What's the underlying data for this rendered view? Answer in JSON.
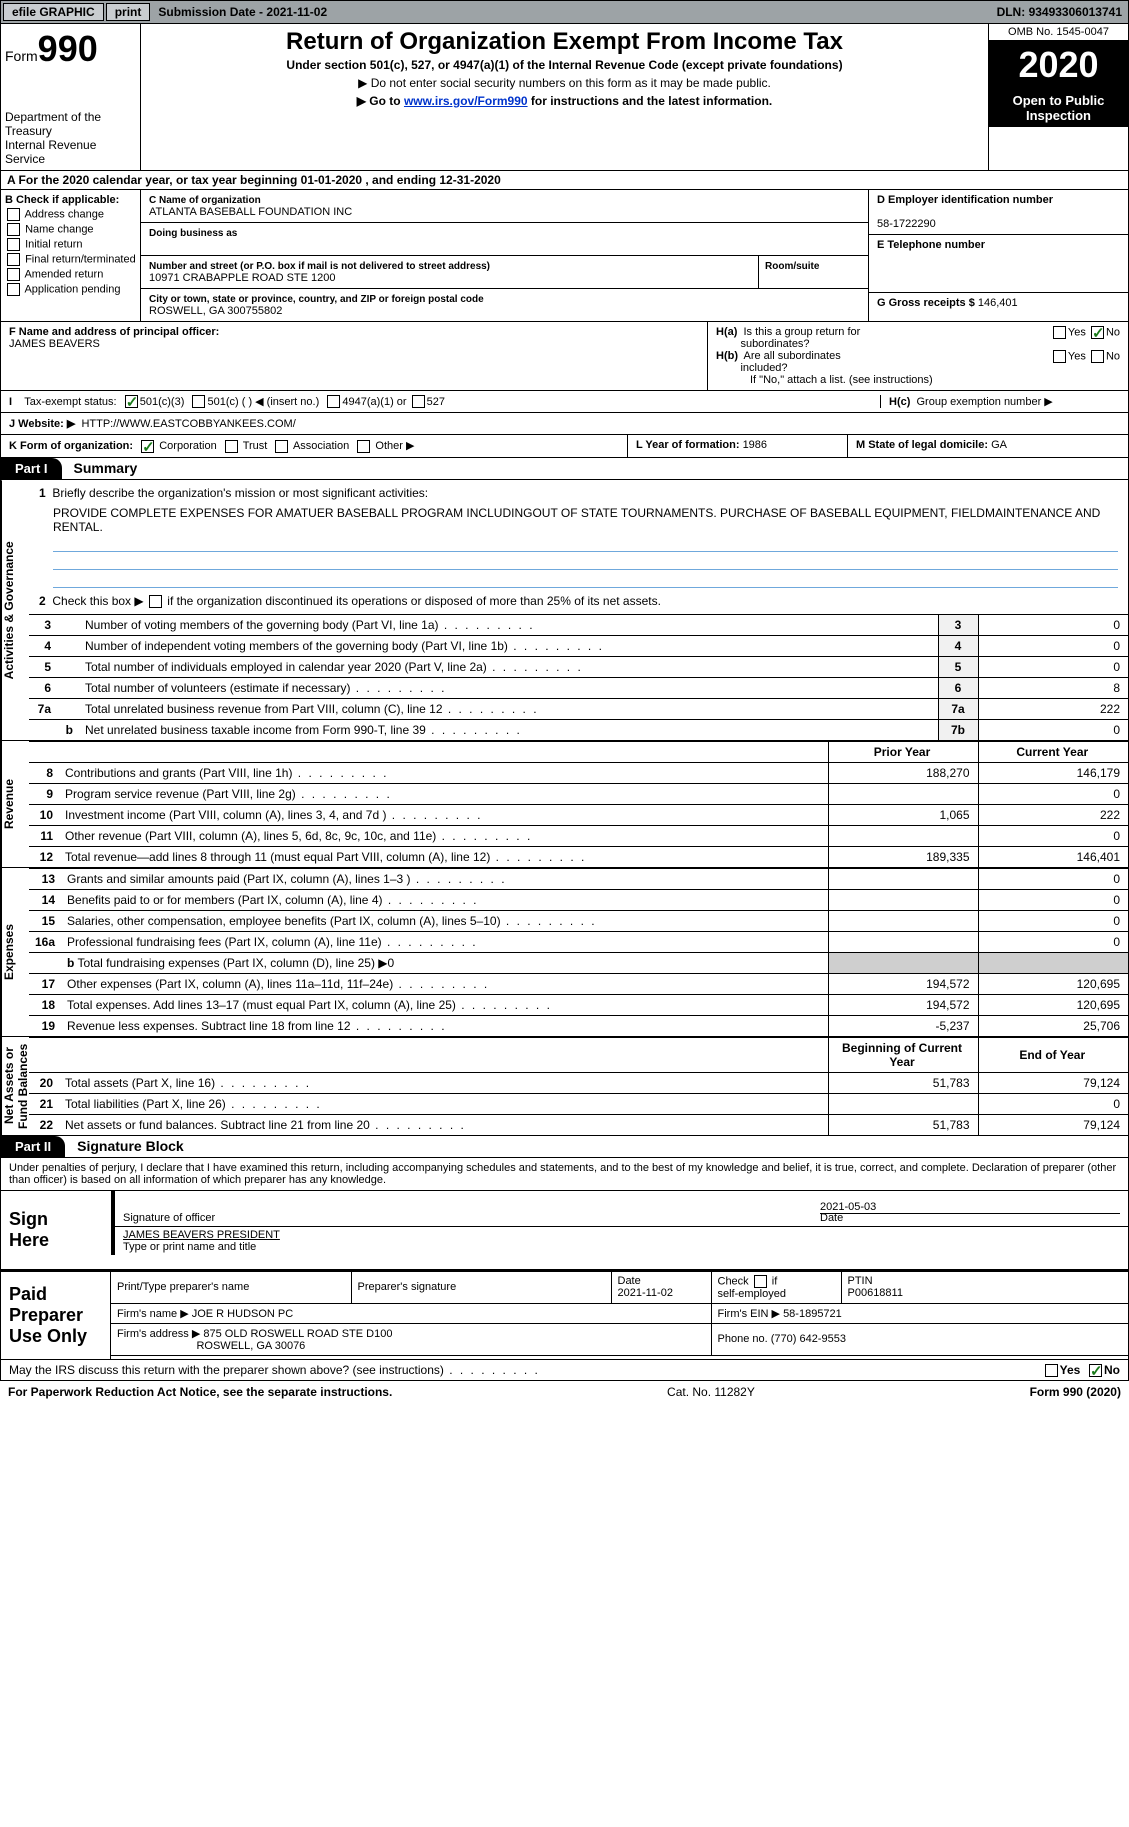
{
  "topbar": {
    "efile": "efile GRAPHIC",
    "print": "print",
    "sub_label": "Submission Date - ",
    "sub_date": "2021-11-02",
    "dln_label": "DLN: ",
    "dln": "93493306013741"
  },
  "header": {
    "form_prefix": "Form",
    "form_num": "990",
    "dept": "Department of the Treasury\nInternal Revenue Service",
    "title": "Return of Organization Exempt From Income Tax",
    "subtitle": "Under section 501(c), 527, or 4947(a)(1) of the Internal Revenue Code (except private foundations)",
    "note1": "▶ Do not enter social security numbers on this form as it may be made public.",
    "note2_prefix": "▶ Go to ",
    "note2_link": "www.irs.gov/Form990",
    "note2_suffix": " for instructions and the latest information.",
    "omb": "OMB No. 1545-0047",
    "year": "2020",
    "open": "Open to Public Inspection"
  },
  "calrow": "A For the 2020 calendar year, or tax year beginning 01-01-2020   , and ending 12-31-2020",
  "boxB": {
    "label": "B Check if applicable:",
    "items": [
      "Address change",
      "Name change",
      "Initial return",
      "Final return/terminated",
      "Amended return",
      "Application pending"
    ]
  },
  "boxC": {
    "name_label": "C Name of organization",
    "name": "ATLANTA BASEBALL FOUNDATION INC",
    "dba_label": "Doing business as",
    "street_label": "Number and street (or P.O. box if mail is not delivered to street address)",
    "room_label": "Room/suite",
    "street": "10971 CRABAPPLE ROAD STE 1200",
    "city_label": "City or town, state or province, country, and ZIP or foreign postal code",
    "city": "ROSWELL, GA  300755802"
  },
  "boxD": {
    "label": "D Employer identification number",
    "value": "58-1722290"
  },
  "boxE": {
    "label": "E Telephone number",
    "value": ""
  },
  "boxG": {
    "label": "G Gross receipts $ ",
    "value": "146,401"
  },
  "boxF": {
    "label": "F Name and address of principal officer:",
    "value": "JAMES BEAVERS"
  },
  "boxH": {
    "a_label": "H(a)  Is this a group return for subordinates?",
    "a_yes": "Yes",
    "a_no": "No",
    "b_label": "H(b)  Are all subordinates included?",
    "b_note": "If \"No,\" attach a list. (see instructions)",
    "c_label": "H(c)  Group exemption number ▶"
  },
  "boxI": {
    "label": "I    Tax-exempt status:",
    "c3": "501(c)(3)",
    "c": "501(c) (   ) ◀ (insert no.)",
    "a1": "4947(a)(1) or",
    "527": "527"
  },
  "boxJ": {
    "label": "J    Website: ▶",
    "value": "HTTP://WWW.EASTCOBBYANKEES.COM/"
  },
  "boxK": {
    "label": "K Form of organization:",
    "corp": "Corporation",
    "trust": "Trust",
    "assoc": "Association",
    "other": "Other ▶"
  },
  "boxL": {
    "label": "L Year of formation: ",
    "value": "1986"
  },
  "boxM": {
    "label": "M State of legal domicile: ",
    "value": "GA"
  },
  "part1": {
    "tab": "Part I",
    "title": "Summary"
  },
  "summary": {
    "side_ag": "Activities & Governance",
    "side_rev": "Revenue",
    "side_exp": "Expenses",
    "side_na": "Net Assets or\nFund Balances",
    "brief_label": "1   Briefly describe the organization's mission or most significant activities:",
    "mission": "PROVIDE COMPLETE EXPENSES FOR AMATUER BASEBALL PROGRAM INCLUDINGOUT OF STATE TOURNAMENTS. PURCHASE OF BASEBALL EQUIPMENT, FIELDMAINTENANCE AND RENTAL.",
    "line2": "2   Check this box ▶        if the organization discontinued its operations or disposed of more than 25% of its net assets.",
    "rows_ag": [
      {
        "n": "3",
        "desc": "Number of voting members of the governing body (Part VI, line 1a)",
        "box": "3",
        "val": "0"
      },
      {
        "n": "4",
        "desc": "Number of independent voting members of the governing body (Part VI, line 1b)",
        "box": "4",
        "val": "0"
      },
      {
        "n": "5",
        "desc": "Total number of individuals employed in calendar year 2020 (Part V, line 2a)",
        "box": "5",
        "val": "0"
      },
      {
        "n": "6",
        "desc": "Total number of volunteers (estimate if necessary)",
        "box": "6",
        "val": "8"
      },
      {
        "n": "7a",
        "desc": "Total unrelated business revenue from Part VIII, column (C), line 12",
        "box": "7a",
        "val": "222"
      },
      {
        "n": "",
        "desc": "Net unrelated business taxable income from Form 990-T, line 39",
        "box": "7b",
        "val": "0",
        "sub": "b"
      }
    ],
    "hdr_prior": "Prior Year",
    "hdr_curr": "Current Year",
    "rows_rev": [
      {
        "n": "8",
        "desc": "Contributions and grants (Part VIII, line 1h)",
        "py": "188,270",
        "cy": "146,179"
      },
      {
        "n": "9",
        "desc": "Program service revenue (Part VIII, line 2g)",
        "py": "",
        "cy": "0"
      },
      {
        "n": "10",
        "desc": "Investment income (Part VIII, column (A), lines 3, 4, and 7d )",
        "py": "1,065",
        "cy": "222"
      },
      {
        "n": "11",
        "desc": "Other revenue (Part VIII, column (A), lines 5, 6d, 8c, 9c, 10c, and 11e)",
        "py": "",
        "cy": "0"
      },
      {
        "n": "12",
        "desc": "Total revenue—add lines 8 through 11 (must equal Part VIII, column (A), line 12)",
        "py": "189,335",
        "cy": "146,401"
      }
    ],
    "rows_exp": [
      {
        "n": "13",
        "desc": "Grants and similar amounts paid (Part IX, column (A), lines 1–3 )",
        "py": "",
        "cy": "0"
      },
      {
        "n": "14",
        "desc": "Benefits paid to or for members (Part IX, column (A), line 4)",
        "py": "",
        "cy": "0"
      },
      {
        "n": "15",
        "desc": "Salaries, other compensation, employee benefits (Part IX, column (A), lines 5–10)",
        "py": "",
        "cy": "0"
      },
      {
        "n": "16a",
        "desc": "Professional fundraising fees (Part IX, column (A), line 11e)",
        "py": "",
        "cy": "0"
      },
      {
        "n": "",
        "sub": "b",
        "desc": "Total fundraising expenses (Part IX, column (D), line 25) ▶0",
        "shade": true
      },
      {
        "n": "17",
        "desc": "Other expenses (Part IX, column (A), lines 11a–11d, 11f–24e)",
        "py": "194,572",
        "cy": "120,695"
      },
      {
        "n": "18",
        "desc": "Total expenses. Add lines 13–17 (must equal Part IX, column (A), line 25)",
        "py": "194,572",
        "cy": "120,695"
      },
      {
        "n": "19",
        "desc": "Revenue less expenses. Subtract line 18 from line 12",
        "py": "-5,237",
        "cy": "25,706"
      }
    ],
    "hdr_beg": "Beginning of Current Year",
    "hdr_end": "End of Year",
    "rows_na": [
      {
        "n": "20",
        "desc": "Total assets (Part X, line 16)",
        "py": "51,783",
        "cy": "79,124"
      },
      {
        "n": "21",
        "desc": "Total liabilities (Part X, line 26)",
        "py": "",
        "cy": "0"
      },
      {
        "n": "22",
        "desc": "Net assets or fund balances. Subtract line 21 from line 20",
        "py": "51,783",
        "cy": "79,124"
      }
    ]
  },
  "part2": {
    "tab": "Part II",
    "title": "Signature Block"
  },
  "sig": {
    "decl": "Under penalties of perjury, I declare that I have examined this return, including accompanying schedules and statements, and to the best of my knowledge and belief, it is true, correct, and complete. Declaration of preparer (other than officer) is based on all information of which preparer has any knowledge.",
    "sign_here": "Sign Here",
    "sig_label": "Signature of officer",
    "date_label": "Date",
    "date_val": "2021-05-03",
    "name_label": "Type or print name and title",
    "name_val": "JAMES BEAVERS  PRESIDENT"
  },
  "paid": {
    "label": "Paid Preparer Use Only",
    "r1": {
      "c1": "Print/Type preparer's name",
      "c2": "Preparer's signature",
      "c3_l": "Date",
      "c3_v": "2021-11-02",
      "c4": "Check        if self-employed",
      "c5_l": "PTIN",
      "c5_v": "P00618811"
    },
    "r2": {
      "l": "Firm's name    ▶ ",
      "v": "JOE R HUDSON PC",
      "r_l": "Firm's EIN ▶ ",
      "r_v": "58-1895721"
    },
    "r3": {
      "l": "Firm's address ▶ ",
      "v1": "875 OLD ROSWELL ROAD STE D100",
      "v2": "ROSWELL, GA  30076",
      "r_l": "Phone no. ",
      "r_v": "(770) 642-9553"
    }
  },
  "discuss": {
    "q": "May the IRS discuss this return with the preparer shown above? (see instructions)",
    "yes": "Yes",
    "no": "No"
  },
  "footer": {
    "l": "For Paperwork Reduction Act Notice, see the separate instructions.",
    "m": "Cat. No. 11282Y",
    "r": "Form 990 (2020)"
  },
  "style": {
    "colors": {
      "topbar_bg": "#9da3a6",
      "btn_bg": "#c9cdd0",
      "year_bg": "#000000",
      "check_green": "#1a7a1a",
      "link": "#0033cc",
      "line_blue": "#6fa8dc",
      "shade": "#cfcfcf",
      "boxn_bg": "#f1f1f1"
    },
    "fonts": {
      "base_pt": 12,
      "title_pt": 24,
      "year_pt": 36,
      "form990_pt": 36
    }
  }
}
